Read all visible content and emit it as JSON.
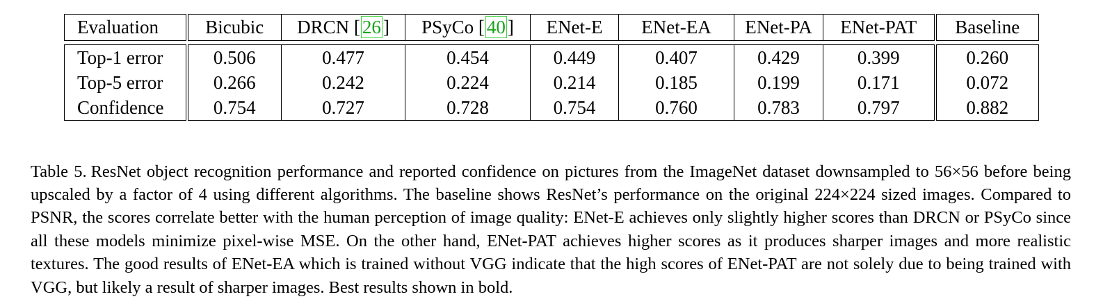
{
  "table": {
    "headers": [
      {
        "text": "Evaluation"
      },
      {
        "text": "Bicubic"
      },
      {
        "text": "DRCN ",
        "cite": "26",
        "after": ""
      },
      {
        "text": "PSyCo ",
        "cite": "40",
        "after": ""
      },
      {
        "text": "ENet-E"
      },
      {
        "text": "ENet-EA"
      },
      {
        "text": "ENet-PA"
      },
      {
        "text": "ENet-PAT"
      },
      {
        "text": "Baseline"
      }
    ],
    "rows": [
      {
        "label": "Top-1 error",
        "values": [
          "0.506",
          "0.477",
          "0.454",
          "0.449",
          "0.407",
          "0.429",
          "0.399",
          "0.260"
        ]
      },
      {
        "label": "Top-5 error",
        "values": [
          "0.266",
          "0.242",
          "0.224",
          "0.214",
          "0.185",
          "0.199",
          "0.171",
          "0.072"
        ]
      },
      {
        "label": "Confidence",
        "values": [
          "0.754",
          "0.727",
          "0.728",
          "0.754",
          "0.760",
          "0.783",
          "0.797",
          "0.882"
        ]
      }
    ],
    "bold_column": "ENet-PAT"
  },
  "caption": {
    "label": "Table 5.",
    "text": "ResNet object recognition performance and reported confidence on pictures from the ImageNet dataset downsampled to 56×56 before being upscaled by a factor of 4 using different algorithms. The baseline shows ResNet’s performance on the original 224×224 sized images. Compared to PSNR, the scores correlate better with the human perception of image quality: ENet-E achieves only slightly higher scores than DRCN or PSyCo since all these models minimize pixel-wise MSE. On the other hand, ENet-PAT achieves higher scores as it produces sharper images and more realistic textures. The good results of ENet-EA which is trained without VGG indicate that the high scores of ENet-PAT are not solely due to being trained with VGG, but likely a result of sharper images. Best results shown in bold."
  }
}
